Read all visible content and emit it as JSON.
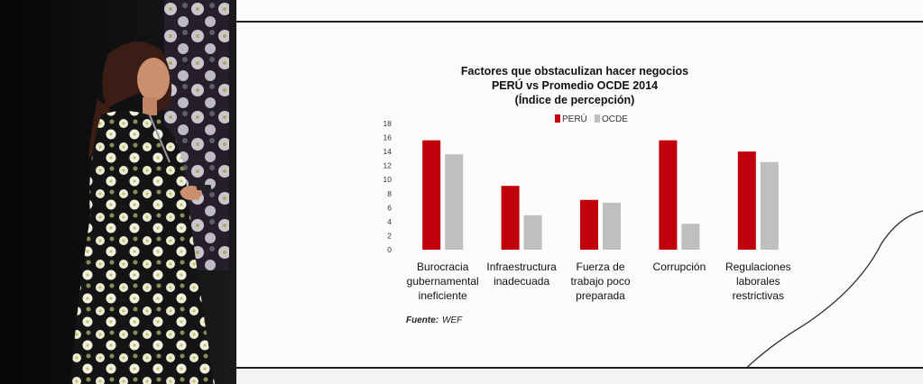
{
  "chart_data": {
    "type": "bar",
    "title_lines": [
      "Factores que obstaculizan hacer negocios",
      "PERÚ vs Promedio OCDE 2014",
      "(Índice de percepción)"
    ],
    "categories": [
      [
        "Burocracia",
        "gubernamental",
        "ineficiente"
      ],
      [
        "Infraestructura",
        "inadecuada"
      ],
      [
        "Fuerza de",
        "trabajo poco",
        "preparada"
      ],
      [
        "Corrupción"
      ],
      [
        "Regulaciones",
        "laborales",
        "restrictivas"
      ]
    ],
    "series": [
      {
        "name": "PERÚ",
        "color": "#c0000b",
        "values": [
          15.6,
          9.1,
          7.1,
          15.6,
          14.0
        ]
      },
      {
        "name": "OCDE",
        "color": "#bfbfbf",
        "values": [
          13.6,
          4.9,
          6.7,
          3.7,
          12.5
        ]
      }
    ],
    "ylim": [
      0,
      18
    ],
    "yticks": [
      "0",
      "2",
      "4",
      "6",
      "8",
      "10",
      "12",
      "14",
      "16",
      "18"
    ],
    "legend_position": "top",
    "grid": false,
    "source_label": "Fuente:",
    "source_value": "WEF"
  }
}
